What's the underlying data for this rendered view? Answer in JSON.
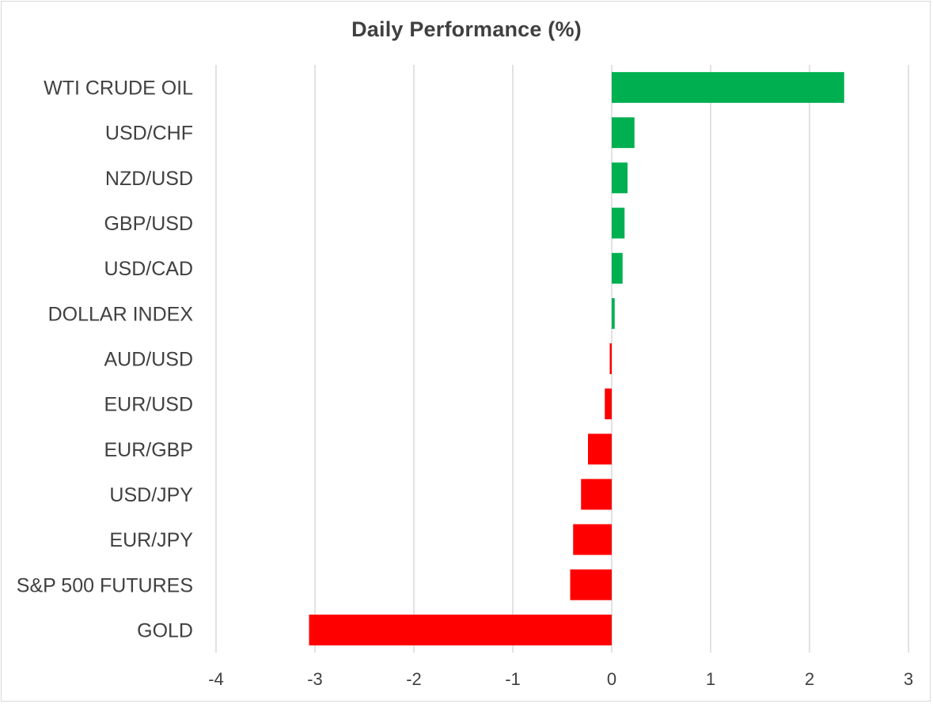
{
  "chart_data": {
    "type": "bar",
    "orientation": "horizontal",
    "title": "Daily Performance (%)",
    "xlabel": "",
    "ylabel": "",
    "categories": [
      "WTI CRUDE OIL",
      "USD/CHF",
      "NZD/USD",
      "GBP/USD",
      "USD/CAD",
      "DOLLAR INDEX",
      "AUD/USD",
      "EUR/USD",
      "EUR/GBP",
      "USD/JPY",
      "EUR/JPY",
      "S&P 500 FUTURES",
      "GOLD"
    ],
    "values": [
      2.35,
      0.23,
      0.16,
      0.13,
      0.11,
      0.03,
      -0.02,
      -0.07,
      -0.24,
      -0.31,
      -0.39,
      -0.42,
      -3.06
    ],
    "xlim": [
      -4,
      3
    ],
    "xticks": [
      -4,
      -3,
      -2,
      -1,
      0,
      1,
      2,
      3
    ],
    "grid": "vertical",
    "legend": "none",
    "colors": {
      "positive": "#00b050",
      "negative": "#ff0000",
      "grid": "#d9d9d9",
      "text": "#404040"
    }
  }
}
